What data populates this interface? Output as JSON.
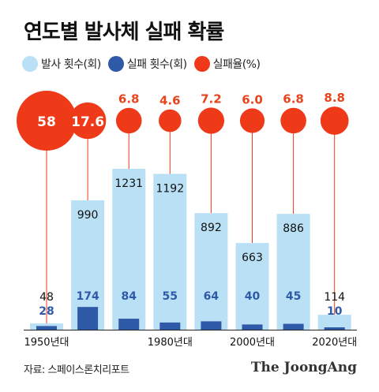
{
  "title": "연도별 발사체 실패 확률",
  "legend": {
    "launches": "발사 횟수(회)",
    "failures": "실패 횟수(회)",
    "rate": "실패율(%)"
  },
  "colors": {
    "launches": "#b9e0f5",
    "failures": "#2f5aa8",
    "rate": "#ee3a18",
    "rate_label": "#e8441c",
    "failure_label": "#2f5aa8",
    "text": "#111111"
  },
  "source": "자료: 스페이스론치리포트",
  "brand": "The JoongAng",
  "chart_data": {
    "type": "bar",
    "categories": [
      "1950s",
      "1960s",
      "1970s",
      "1980s",
      "1990s",
      "2000s",
      "2010s",
      "2020s"
    ],
    "tick_labels": [
      "1950년대",
      "",
      "",
      "1980년대",
      "",
      "2000년대",
      "",
      "2020년대"
    ],
    "series": [
      {
        "name": "발사 횟수(회)",
        "values": [
          48,
          990,
          1231,
          1192,
          892,
          663,
          886,
          114
        ],
        "labels": [
          "48",
          "990",
          "1231",
          "1192",
          "892",
          "663",
          "886",
          "114"
        ]
      },
      {
        "name": "실패 횟수(회)",
        "values": [
          28,
          174,
          84,
          55,
          64,
          40,
          45,
          10
        ],
        "labels": [
          "28",
          "174",
          "84",
          "55",
          "64",
          "40",
          "45",
          "10"
        ]
      },
      {
        "name": "실패율(%)",
        "values": [
          58,
          17.6,
          6.8,
          4.6,
          7.2,
          6.0,
          6.8,
          8.8
        ],
        "labels": [
          "58",
          "17.6",
          "6.8",
          "4.6",
          "7.2",
          "6.0",
          "6.8",
          "8.8"
        ]
      }
    ],
    "ylim": [
      0,
      1400
    ],
    "grid": false,
    "legend_position": "top-left"
  }
}
